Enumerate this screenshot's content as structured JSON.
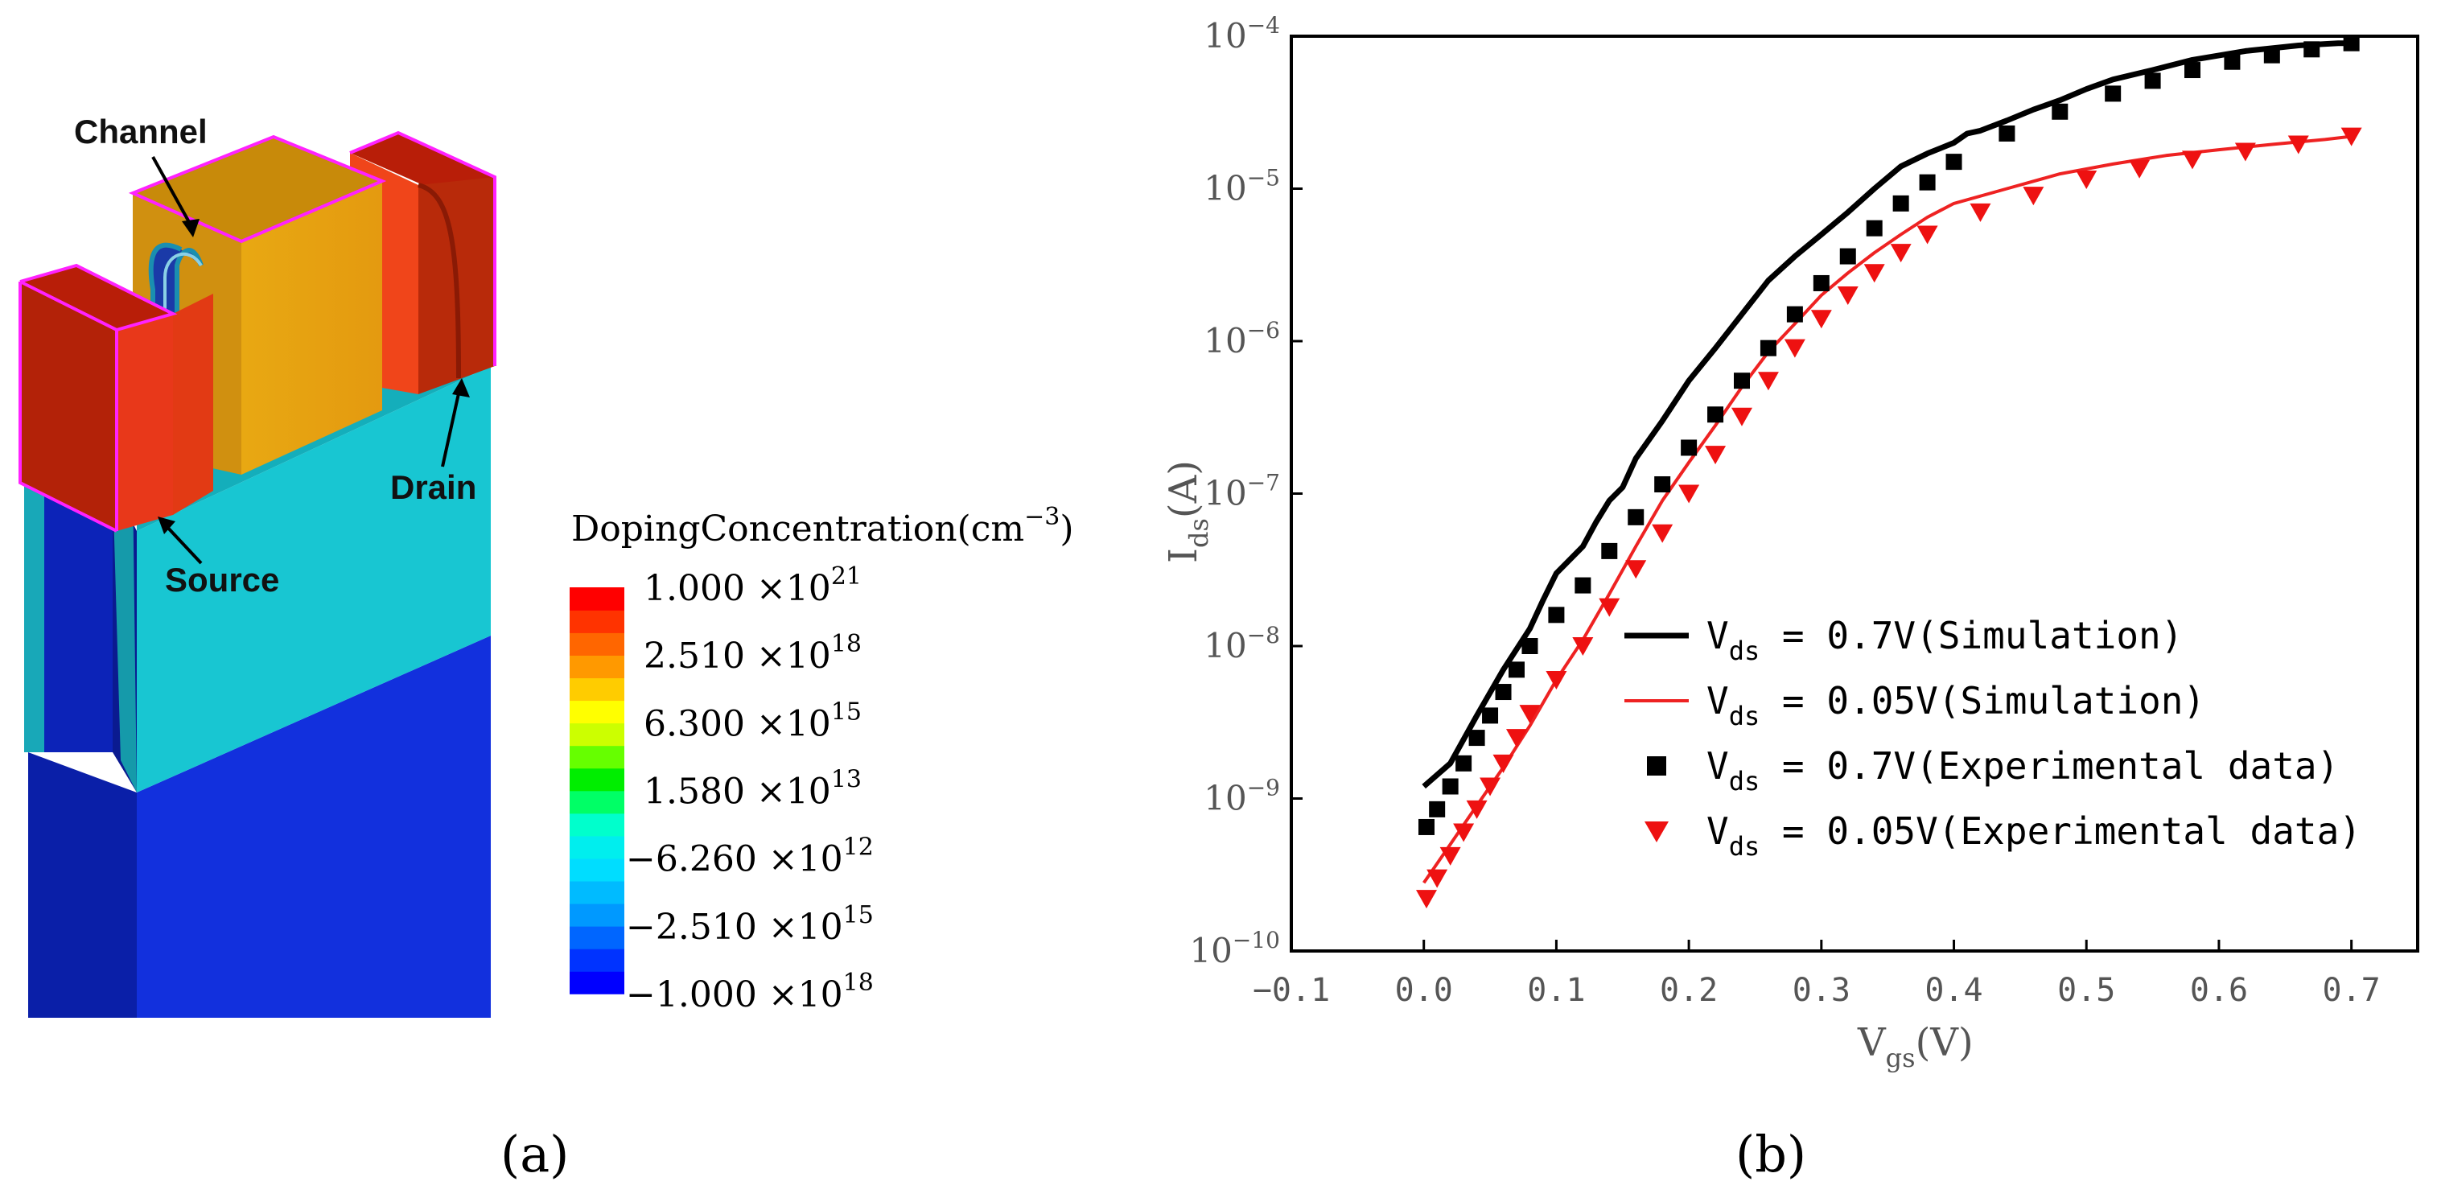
{
  "panel_a": {
    "label": "(a)",
    "annotations": {
      "channel": "Channel",
      "source": "Source",
      "drain": "Drain"
    },
    "colorbar": {
      "title": "DopingConcentration(cm",
      "title_exp": "−3",
      "title_close": ")",
      "ticks": [
        {
          "mantissa": "1.000",
          "exp": "21"
        },
        {
          "mantissa": "2.510",
          "exp": "18"
        },
        {
          "mantissa": "6.300",
          "exp": "15"
        },
        {
          "mantissa": "1.580",
          "exp": "13"
        },
        {
          "mantissa": "−6.260",
          "exp": "12"
        },
        {
          "mantissa": "−2.510",
          "exp": "15"
        },
        {
          "mantissa": "−1.000",
          "exp": "18"
        }
      ],
      "times": "×10",
      "colors": [
        "#0000ff",
        "#0033ff",
        "#0066ff",
        "#0099ff",
        "#00bbff",
        "#00ddff",
        "#00eeee",
        "#00ffcc",
        "#00ff66",
        "#00ee00",
        "#66ff00",
        "#ccff00",
        "#ffff00",
        "#ffcc00",
        "#ff9900",
        "#ff6600",
        "#ff3300",
        "#ff0000"
      ]
    },
    "colors": {
      "gate": "#e8a010",
      "sd": "#e83010",
      "substrate": "#0a23d0",
      "spacer": "#18c2cf",
      "outline": "#ff22ff"
    }
  },
  "panel_b": {
    "label": "(b)",
    "chart_data": {
      "type": "line",
      "xlabel": "V",
      "xlabel_sub": "gs",
      "xlabel_unit": "(V)",
      "ylabel": "I",
      "ylabel_sub": "ds",
      "ylabel_unit": "(A)",
      "xlim": [
        -0.1,
        0.75
      ],
      "ylim_log10": [
        -10,
        -4
      ],
      "xticks": [
        -0.1,
        0.0,
        0.1,
        0.2,
        0.3,
        0.4,
        0.5,
        0.6,
        0.7
      ],
      "xtick_labels": [
        "−0.1",
        "0.0",
        "0.1",
        "0.2",
        "0.3",
        "0.4",
        "0.5",
        "0.6",
        "0.7"
      ],
      "yticks_exp": [
        -4,
        -5,
        -6,
        -7,
        -8,
        -9,
        -10
      ],
      "ytick_base": "10",
      "ytick_labels": [
        "−4",
        "−5",
        "−6",
        "−7",
        "−8",
        "−9",
        "−10"
      ],
      "series": [
        {
          "name": "V_ds = 0.7V(Simulation)",
          "legend_main": "V",
          "legend_sub": "ds",
          "legend_rest": " = 0.7V(Simulation)",
          "style": "line",
          "color": "#000000",
          "x": [
            0.0,
            0.02,
            0.04,
            0.06,
            0.08,
            0.09,
            0.1,
            0.12,
            0.13,
            0.14,
            0.15,
            0.16,
            0.18,
            0.2,
            0.22,
            0.24,
            0.26,
            0.28,
            0.3,
            0.32,
            0.34,
            0.36,
            0.38,
            0.4,
            0.41,
            0.42,
            0.44,
            0.46,
            0.48,
            0.5,
            0.52,
            0.55,
            0.58,
            0.62,
            0.66,
            0.69,
            0.7
          ],
          "y": [
            1.2e-09,
            1.7e-09,
            3.5e-09,
            7e-09,
            1.3e-08,
            2e-08,
            3e-08,
            4.5e-08,
            6.5e-08,
            9e-08,
            1.1e-07,
            1.7e-07,
            3e-07,
            5.5e-07,
            9e-07,
            1.5e-06,
            2.5e-06,
            3.6e-06,
            5e-06,
            7e-06,
            1e-05,
            1.4e-05,
            1.7e-05,
            2e-05,
            2.3e-05,
            2.4e-05,
            2.8e-05,
            3.3e-05,
            3.8e-05,
            4.5e-05,
            5.2e-05,
            6e-05,
            7e-05,
            8e-05,
            8.7e-05,
            9e-05,
            9e-05
          ]
        },
        {
          "name": "V_ds = 0.05V(Simulation)",
          "legend_main": "V",
          "legend_sub": "ds",
          "legend_rest": " = 0.05V(Simulation)",
          "style": "line",
          "color": "#ee2222",
          "x": [
            0.0,
            0.02,
            0.04,
            0.06,
            0.08,
            0.1,
            0.12,
            0.14,
            0.16,
            0.18,
            0.2,
            0.22,
            0.24,
            0.26,
            0.28,
            0.3,
            0.32,
            0.34,
            0.36,
            0.38,
            0.4,
            0.44,
            0.48,
            0.52,
            0.56,
            0.6,
            0.64,
            0.68,
            0.7
          ],
          "y": [
            2.8e-10,
            5e-10,
            9e-10,
            1.6e-09,
            3e-09,
            6e-09,
            1.1e-08,
            2.2e-08,
            4.5e-08,
            9e-08,
            1.6e-07,
            2.8e-07,
            5e-07,
            8.5e-07,
            1.3e-06,
            2e-06,
            2.8e-06,
            3.8e-06,
            5e-06,
            6.5e-06,
            8e-06,
            1e-05,
            1.25e-05,
            1.45e-05,
            1.65e-05,
            1.8e-05,
            1.95e-05,
            2.1e-05,
            2.2e-05
          ]
        },
        {
          "name": "V_ds = 0.7V(Experimental data)",
          "legend_main": "V",
          "legend_sub": "ds",
          "legend_rest": " = 0.7V(Experimental data)",
          "style": "square",
          "color": "#000000",
          "x": [
            0.002,
            0.01,
            0.02,
            0.03,
            0.04,
            0.05,
            0.06,
            0.07,
            0.08,
            0.1,
            0.12,
            0.14,
            0.16,
            0.18,
            0.2,
            0.22,
            0.24,
            0.26,
            0.28,
            0.3,
            0.32,
            0.34,
            0.36,
            0.38,
            0.4,
            0.44,
            0.48,
            0.52,
            0.55,
            0.58,
            0.61,
            0.64,
            0.67,
            0.7
          ],
          "y": [
            6.5e-10,
            8.5e-10,
            1.2e-09,
            1.7e-09,
            2.5e-09,
            3.5e-09,
            5e-09,
            7e-09,
            1e-08,
            1.6e-08,
            2.5e-08,
            4.2e-08,
            7e-08,
            1.15e-07,
            2e-07,
            3.3e-07,
            5.5e-07,
            9e-07,
            1.5e-06,
            2.4e-06,
            3.6e-06,
            5.5e-06,
            8e-06,
            1.1e-05,
            1.5e-05,
            2.3e-05,
            3.2e-05,
            4.2e-05,
            5.1e-05,
            6e-05,
            6.8e-05,
            7.5e-05,
            8.2e-05,
            9e-05
          ]
        },
        {
          "name": "V_ds = 0.05V(Experimental data)",
          "legend_main": "V",
          "legend_sub": "ds",
          "legend_rest": " = 0.05V(Experimental data)",
          "style": "triangle",
          "color": "#ee1111",
          "x": [
            0.002,
            0.01,
            0.02,
            0.03,
            0.04,
            0.05,
            0.06,
            0.07,
            0.08,
            0.1,
            0.12,
            0.14,
            0.16,
            0.18,
            0.2,
            0.22,
            0.24,
            0.26,
            0.28,
            0.3,
            0.32,
            0.34,
            0.36,
            0.38,
            0.42,
            0.46,
            0.5,
            0.54,
            0.58,
            0.62,
            0.66,
            0.7
          ],
          "y": [
            2.2e-10,
            3e-10,
            4.2e-10,
            6e-10,
            8.5e-10,
            1.2e-09,
            1.7e-09,
            2.5e-09,
            3.6e-09,
            6e-09,
            1e-08,
            1.8e-08,
            3.2e-08,
            5.5e-08,
            1e-07,
            1.8e-07,
            3.2e-07,
            5.5e-07,
            9e-07,
            1.4e-06,
            2e-06,
            2.8e-06,
            3.8e-06,
            5e-06,
            7e-06,
            9e-06,
            1.15e-05,
            1.35e-05,
            1.55e-05,
            1.75e-05,
            1.95e-05,
            2.2e-05
          ]
        }
      ]
    }
  }
}
